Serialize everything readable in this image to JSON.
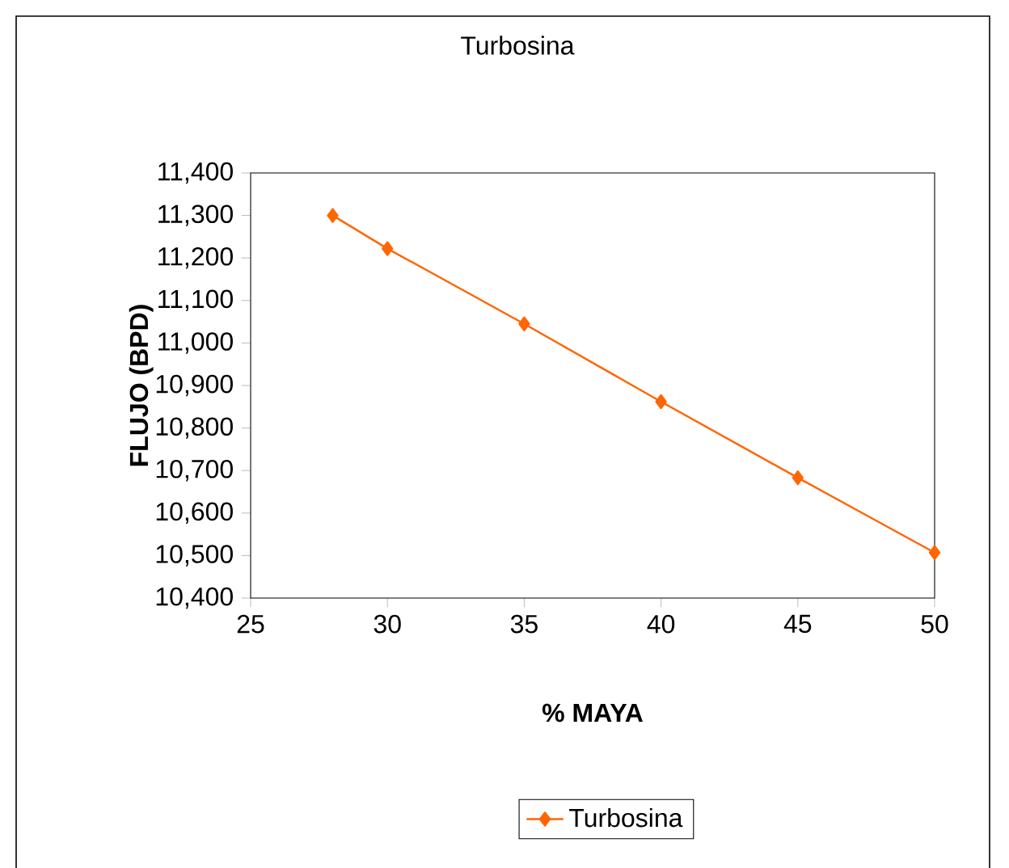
{
  "chart_data": {
    "type": "line",
    "title": "Turbosina",
    "xlabel": "% MAYA",
    "ylabel": "FLUJO (BPD)",
    "x": [
      28,
      30,
      35,
      40,
      45,
      50
    ],
    "series": [
      {
        "name": "Turbosina",
        "color": "#ff6600",
        "values": [
          11300,
          11222,
          11045,
          10862,
          10683,
          10507
        ]
      }
    ],
    "xlim": [
      25,
      50
    ],
    "xticks": [
      25,
      30,
      35,
      40,
      45,
      50
    ],
    "ylim": [
      10400,
      11400
    ],
    "yticks": [
      {
        "value": 10400,
        "label": "10,400"
      },
      {
        "value": 10500,
        "label": "10,500"
      },
      {
        "value": 10600,
        "label": "10,600"
      },
      {
        "value": 10700,
        "label": "10,700"
      },
      {
        "value": 10800,
        "label": "10,800"
      },
      {
        "value": 10900,
        "label": "10,900"
      },
      {
        "value": 11000,
        "label": "11,000"
      },
      {
        "value": 11100,
        "label": "11,100"
      },
      {
        "value": 11200,
        "label": "11,200"
      },
      {
        "value": 11300,
        "label": "11,300"
      },
      {
        "value": 11400,
        "label": "11,400"
      }
    ],
    "grid": false,
    "legend": "bottom",
    "marker": "diamond",
    "line_style": "solid"
  }
}
